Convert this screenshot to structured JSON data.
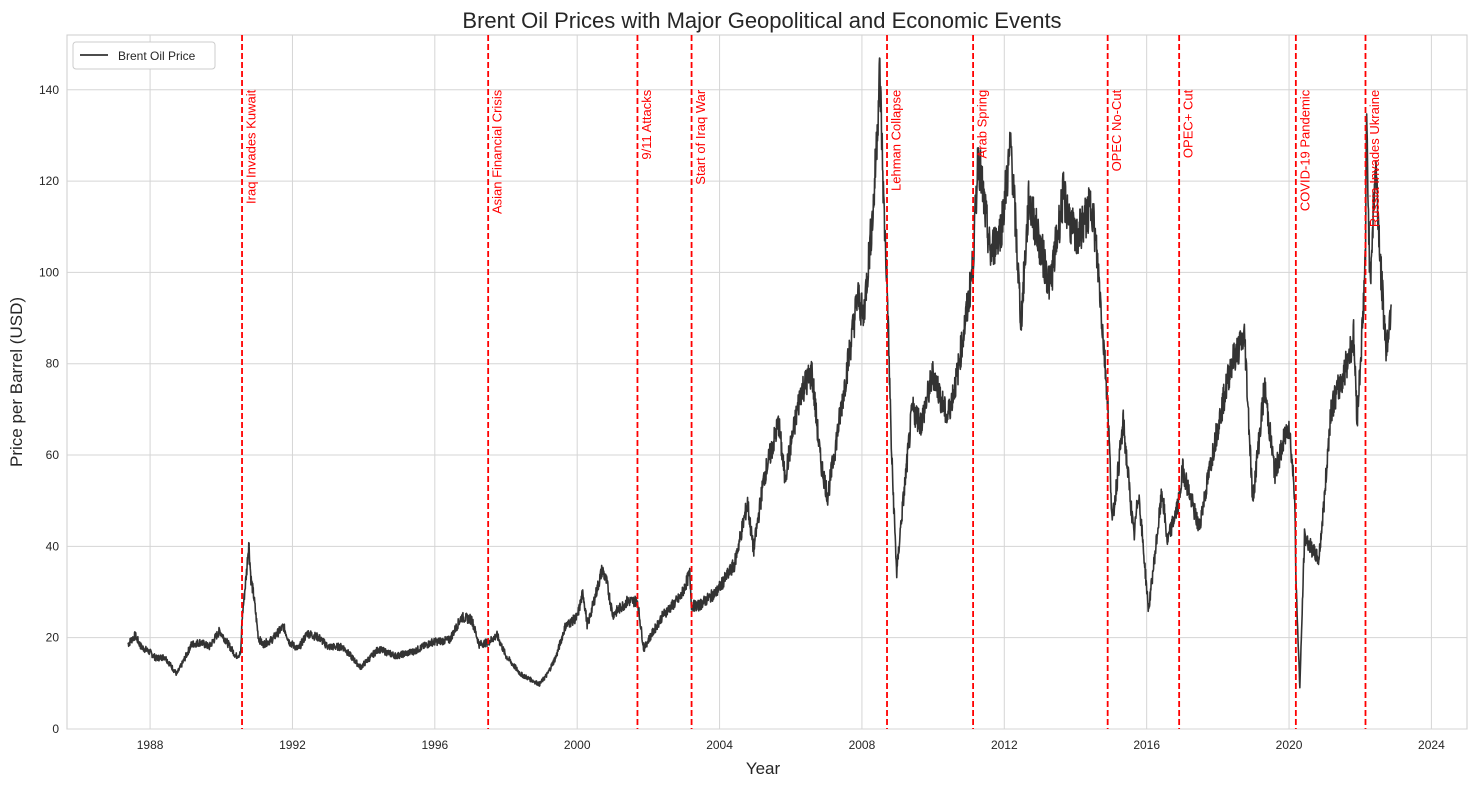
{
  "chart_data": {
    "type": "line",
    "title": "Brent Oil Prices with Major Geopolitical and Economic Events",
    "xlabel": "Year",
    "ylabel": "Price per Barrel (USD)",
    "xlim": [
      "1985-09-01",
      "2025-01-01"
    ],
    "ylim": [
      0,
      152
    ],
    "x_ticks": [
      "1988",
      "1992",
      "1996",
      "2000",
      "2004",
      "2008",
      "2012",
      "2016",
      "2020",
      "2024"
    ],
    "y_ticks": [
      0,
      20,
      40,
      60,
      80,
      100,
      120,
      140
    ],
    "grid": true,
    "legend_position": "top-left",
    "series": [
      {
        "name": "Brent Oil Price",
        "color": "#333333",
        "points": [
          [
            "1987-05-20",
            18.6
          ],
          [
            "1987-08-01",
            20.5
          ],
          [
            "1987-10-01",
            18.0
          ],
          [
            "1988-01-01",
            16.8
          ],
          [
            "1988-03-01",
            15.5
          ],
          [
            "1988-06-01",
            15.8
          ],
          [
            "1988-10-01",
            12.0
          ],
          [
            "1988-12-01",
            14.5
          ],
          [
            "1989-03-01",
            18.5
          ],
          [
            "1989-06-01",
            19.0
          ],
          [
            "1989-09-01",
            18.0
          ],
          [
            "1989-12-15",
            21.5
          ],
          [
            "1990-03-01",
            19.0
          ],
          [
            "1990-06-01",
            16.0
          ],
          [
            "1990-07-20",
            16.5
          ],
          [
            "1990-08-02",
            24.0
          ],
          [
            "1990-08-20",
            28.0
          ],
          [
            "1990-09-20",
            35.0
          ],
          [
            "1990-10-10",
            41.0
          ],
          [
            "1990-11-01",
            33.0
          ],
          [
            "1990-12-01",
            29.0
          ],
          [
            "1991-01-17",
            20.0
          ],
          [
            "1991-03-01",
            18.5
          ],
          [
            "1991-06-01",
            19.5
          ],
          [
            "1991-10-01",
            22.5
          ],
          [
            "1991-12-01",
            19.0
          ],
          [
            "1992-03-01",
            17.5
          ],
          [
            "1992-06-01",
            21.0
          ],
          [
            "1992-10-01",
            20.0
          ],
          [
            "1993-01-01",
            18.0
          ],
          [
            "1993-06-01",
            18.0
          ],
          [
            "1993-12-01",
            13.5
          ],
          [
            "1994-06-01",
            17.5
          ],
          [
            "1994-12-01",
            16.0
          ],
          [
            "1995-06-01",
            17.0
          ],
          [
            "1995-12-01",
            19.0
          ],
          [
            "1996-06-01",
            19.5
          ],
          [
            "1996-10-01",
            24.5
          ],
          [
            "1997-01-15",
            24.0
          ],
          [
            "1997-04-01",
            18.5
          ],
          [
            "1997-07-02",
            19.0
          ],
          [
            "1997-10-01",
            20.5
          ],
          [
            "1998-01-01",
            16.0
          ],
          [
            "1998-06-01",
            12.0
          ],
          [
            "1998-12-10",
            9.8
          ],
          [
            "1999-03-01",
            12.0
          ],
          [
            "1999-06-01",
            16.0
          ],
          [
            "1999-09-01",
            22.5
          ],
          [
            "2000-01-01",
            24.5
          ],
          [
            "2000-03-01",
            30.0
          ],
          [
            "2000-04-15",
            22.5
          ],
          [
            "2000-09-15",
            35.0
          ],
          [
            "2000-11-01",
            32.0
          ],
          [
            "2001-01-01",
            25.0
          ],
          [
            "2001-06-01",
            28.0
          ],
          [
            "2001-09-11",
            28.0
          ],
          [
            "2001-11-15",
            17.5
          ],
          [
            "2002-01-01",
            19.5
          ],
          [
            "2002-06-01",
            25.0
          ],
          [
            "2002-12-01",
            29.0
          ],
          [
            "2003-03-01",
            34.0
          ],
          [
            "2003-03-20",
            27.0
          ],
          [
            "2003-06-01",
            27.0
          ],
          [
            "2003-12-01",
            30.0
          ],
          [
            "2004-06-01",
            36.0
          ],
          [
            "2004-10-15",
            49.5
          ],
          [
            "2004-12-15",
            39.0
          ],
          [
            "2005-04-01",
            55.0
          ],
          [
            "2005-08-30",
            67.0
          ],
          [
            "2005-11-01",
            55.0
          ],
          [
            "2006-04-15",
            74.0
          ],
          [
            "2006-08-07",
            78.0
          ],
          [
            "2006-11-01",
            59.0
          ],
          [
            "2007-01-15",
            51.0
          ],
          [
            "2007-06-01",
            70.0
          ],
          [
            "2007-11-20",
            95.0
          ],
          [
            "2008-01-15",
            90.0
          ],
          [
            "2008-05-01",
            115.0
          ],
          [
            "2008-07-03",
            144.0
          ],
          [
            "2008-08-15",
            113.0
          ],
          [
            "2008-09-15",
            98.0
          ],
          [
            "2008-11-01",
            60.0
          ],
          [
            "2008-12-24",
            34.0
          ],
          [
            "2009-02-01",
            44.0
          ],
          [
            "2009-06-01",
            70.0
          ],
          [
            "2009-09-01",
            67.0
          ],
          [
            "2010-01-01",
            78.0
          ],
          [
            "2010-05-25",
            68.0
          ],
          [
            "2010-09-01",
            77.0
          ],
          [
            "2010-12-31",
            94.0
          ],
          [
            "2011-02-15",
            102.0
          ],
          [
            "2011-04-08",
            126.0
          ],
          [
            "2011-08-10",
            104.0
          ],
          [
            "2011-12-01",
            110.0
          ],
          [
            "2012-03-10",
            128.0
          ],
          [
            "2012-06-21",
            89.0
          ],
          [
            "2012-09-10",
            116.0
          ],
          [
            "2013-04-15",
            97.0
          ],
          [
            "2013-08-28",
            117.0
          ],
          [
            "2014-01-01",
            107.0
          ],
          [
            "2014-06-19",
            115.0
          ],
          [
            "2014-09-01",
            98.0
          ],
          [
            "2014-11-27",
            72.0
          ],
          [
            "2015-01-13",
            45.0
          ],
          [
            "2015-05-06",
            67.0
          ],
          [
            "2015-08-24",
            42.0
          ],
          [
            "2015-10-10",
            52.0
          ],
          [
            "2016-01-20",
            26.0
          ],
          [
            "2016-06-08",
            52.0
          ],
          [
            "2016-08-01",
            41.0
          ],
          [
            "2016-11-30",
            50.0
          ],
          [
            "2017-01-06",
            57.0
          ],
          [
            "2017-06-21",
            44.0
          ],
          [
            "2017-12-01",
            63.0
          ],
          [
            "2018-05-17",
            80.0
          ],
          [
            "2018-10-03",
            86.0
          ],
          [
            "2018-12-24",
            50.0
          ],
          [
            "2019-04-25",
            75.0
          ],
          [
            "2019-08-07",
            56.0
          ],
          [
            "2019-12-31",
            67.0
          ],
          [
            "2020-03-01",
            51.0
          ],
          [
            "2020-03-11",
            33.0
          ],
          [
            "2020-04-21",
            9.1
          ],
          [
            "2020-06-08",
            42.0
          ],
          [
            "2020-11-02",
            37.0
          ],
          [
            "2021-01-01",
            51.0
          ],
          [
            "2021-03-05",
            70.0
          ],
          [
            "2021-07-06",
            77.0
          ],
          [
            "2021-10-25",
            86.0
          ],
          [
            "2021-12-01",
            68.0
          ],
          [
            "2022-01-31",
            91.0
          ],
          [
            "2022-02-24",
            105.0
          ],
          [
            "2022-03-08",
            133.0
          ],
          [
            "2022-04-11",
            98.0
          ],
          [
            "2022-06-08",
            124.0
          ],
          [
            "2022-08-01",
            100.0
          ],
          [
            "2022-09-26",
            83.0
          ],
          [
            "2022-11-14",
            93.0
          ]
        ]
      }
    ],
    "events": [
      {
        "date": "1990-08-02",
        "label": "Iraq Invades Kuwait"
      },
      {
        "date": "1997-07-02",
        "label": "Asian Financial Crisis"
      },
      {
        "date": "2001-09-11",
        "label": "9/11 Attacks"
      },
      {
        "date": "2003-03-20",
        "label": "Start of Iraq War"
      },
      {
        "date": "2008-09-15",
        "label": "Lehman Collapse"
      },
      {
        "date": "2011-02-15",
        "label": "Arab Spring"
      },
      {
        "date": "2014-11-27",
        "label": "OPEC No-Cut"
      },
      {
        "date": "2016-11-30",
        "label": "OPEC+ Cut"
      },
      {
        "date": "2020-03-11",
        "label": "COVID-19 Pandemic"
      },
      {
        "date": "2022-02-24",
        "label": "Russia Invades Ukraine"
      }
    ],
    "event_line_color": "#ff0000",
    "legend_entries": [
      {
        "label": "Brent Oil Price",
        "color": "#333333"
      }
    ]
  }
}
